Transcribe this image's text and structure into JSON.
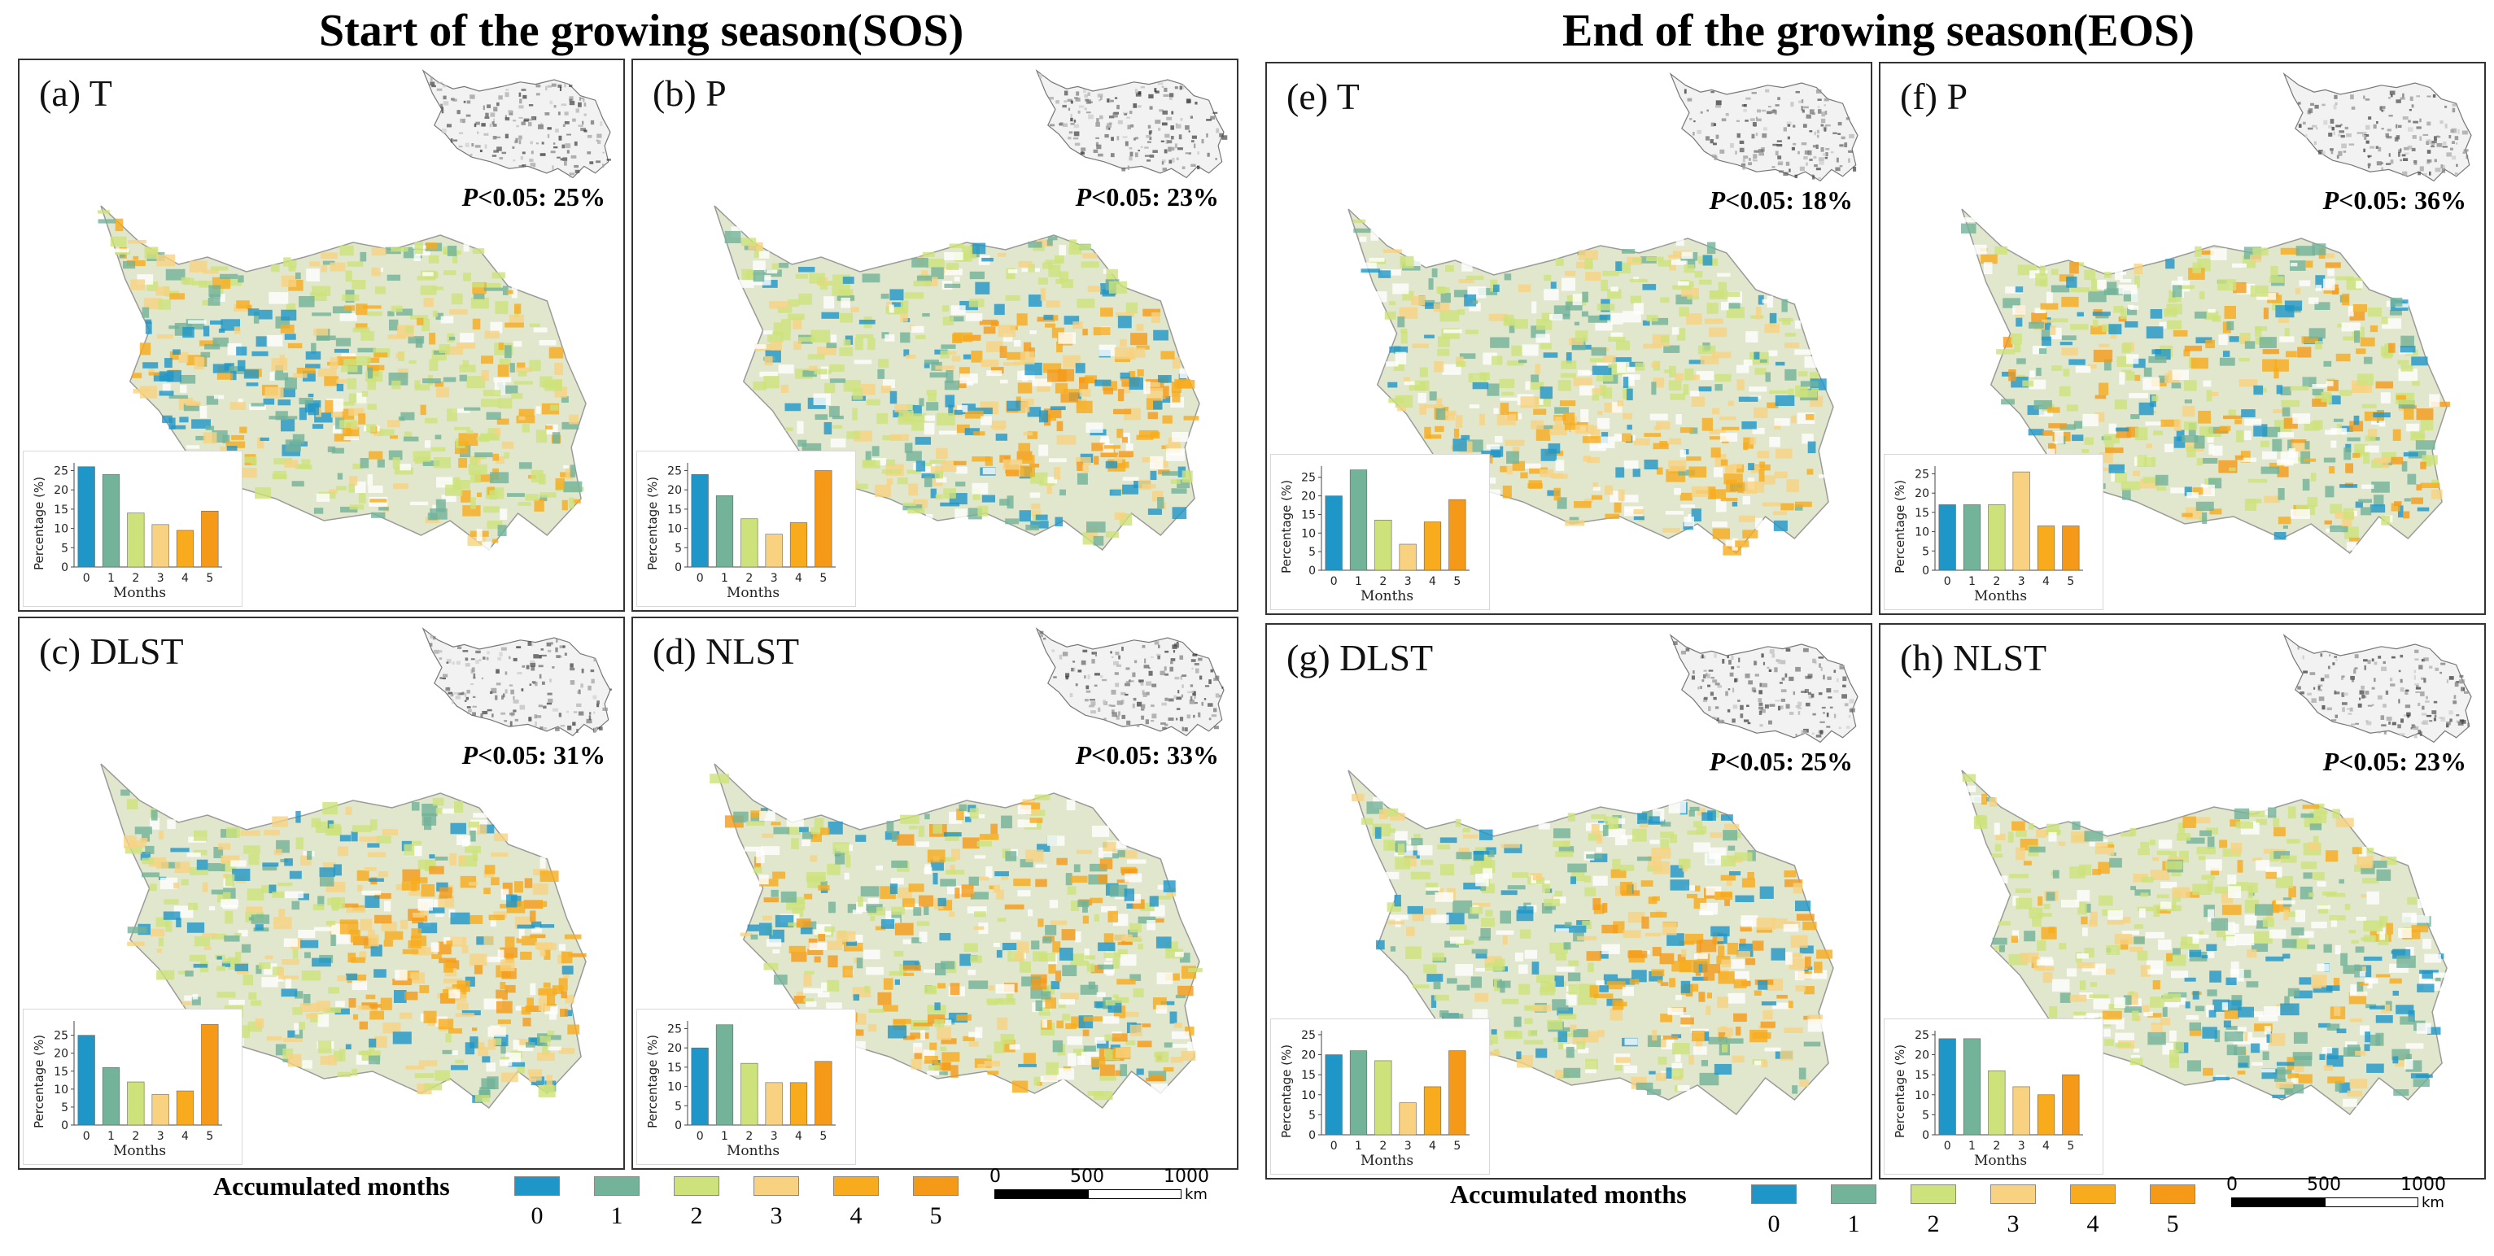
{
  "sections": {
    "sos_title": "Start of the growing season(SOS)",
    "eos_title": "End of the growing season(EOS)"
  },
  "colors": {
    "m0": "#1f96c8",
    "m1": "#72b39a",
    "m2": "#cde27a",
    "m3": "#f8d281",
    "m4": "#f8ab1c",
    "m5": "#f59a18",
    "map_base": "#c8d4a4"
  },
  "chart_data": [
    {
      "type": "bar",
      "panel": "(a) T",
      "sig_value": "<0.05: 25%",
      "categories": [
        "0",
        "1",
        "2",
        "3",
        "4",
        "5"
      ],
      "values": [
        26,
        24,
        14,
        11,
        9.5,
        14.5
      ],
      "xlabel": "Months",
      "ylabel": "Percentage (%)",
      "ylim": [
        0,
        27
      ],
      "yticks": [
        0,
        5,
        10,
        15,
        20,
        25
      ],
      "map_bias": "blue-west"
    },
    {
      "type": "bar",
      "panel": "(b) P",
      "sig_value": "<0.05: 23%",
      "categories": [
        "0",
        "1",
        "2",
        "3",
        "4",
        "5"
      ],
      "values": [
        24,
        18.5,
        12.5,
        8.5,
        11.5,
        25
      ],
      "xlabel": "Months",
      "ylabel": "Percentage (%)",
      "ylim": [
        0,
        27
      ],
      "yticks": [
        0,
        5,
        10,
        15,
        20,
        25
      ],
      "map_bias": "orange-east"
    },
    {
      "type": "bar",
      "panel": "(c) DLST",
      "sig_value": "<0.05: 31%",
      "categories": [
        "0",
        "1",
        "2",
        "3",
        "4",
        "5"
      ],
      "values": [
        25,
        16,
        12,
        8.5,
        9.5,
        28
      ],
      "xlabel": "Months",
      "ylabel": "Percentage (%)",
      "ylim": [
        0,
        29
      ],
      "yticks": [
        0,
        5,
        10,
        15,
        20,
        25
      ],
      "map_bias": "orange-east"
    },
    {
      "type": "bar",
      "panel": "(d) NLST",
      "sig_value": "<0.05: 33%",
      "categories": [
        "0",
        "1",
        "2",
        "3",
        "4",
        "5"
      ],
      "values": [
        20,
        26,
        16,
        11,
        11,
        16.5
      ],
      "xlabel": "Months",
      "ylabel": "Percentage (%)",
      "ylim": [
        0,
        27
      ],
      "yticks": [
        0,
        5,
        10,
        15,
        20,
        25
      ],
      "map_bias": "mixed"
    },
    {
      "type": "bar",
      "panel": "(e) T",
      "sig_value": "<0.05: 18%",
      "categories": [
        "0",
        "1",
        "2",
        "3",
        "4",
        "5"
      ],
      "values": [
        20,
        27,
        13.5,
        7,
        13,
        19
      ],
      "xlabel": "Months",
      "ylabel": "Percentage (%)",
      "ylim": [
        0,
        28
      ],
      "yticks": [
        0,
        5,
        10,
        15,
        20,
        25
      ],
      "map_bias": "orange-south"
    },
    {
      "type": "bar",
      "panel": "(f) P",
      "sig_value": "<0.05: 36%",
      "categories": [
        "0",
        "1",
        "2",
        "3",
        "4",
        "5"
      ],
      "values": [
        17,
        17,
        17,
        25.5,
        11.5,
        11.5
      ],
      "xlabel": "Months",
      "ylabel": "Percentage (%)",
      "ylim": [
        0,
        27
      ],
      "yticks": [
        0,
        5,
        10,
        15,
        20,
        25
      ],
      "map_bias": "mixed"
    },
    {
      "type": "bar",
      "panel": "(g) DLST",
      "sig_value": "<0.05: 25%",
      "categories": [
        "0",
        "1",
        "2",
        "3",
        "4",
        "5"
      ],
      "values": [
        20,
        21,
        18.5,
        8,
        12,
        21
      ],
      "xlabel": "Months",
      "ylabel": "Percentage (%)",
      "ylim": [
        0,
        26
      ],
      "yticks": [
        0,
        5,
        10,
        15,
        20,
        25
      ],
      "map_bias": "orange-east"
    },
    {
      "type": "bar",
      "panel": "(h) NLST",
      "sig_value": "<0.05: 23%",
      "categories": [
        "0",
        "1",
        "2",
        "3",
        "4",
        "5"
      ],
      "values": [
        24,
        24,
        16,
        12,
        10,
        15
      ],
      "xlabel": "Months",
      "ylabel": "Percentage (%)",
      "ylim": [
        0,
        26
      ],
      "yticks": [
        0,
        5,
        10,
        15,
        20,
        25
      ],
      "map_bias": "blue-south"
    }
  ],
  "sig_prefix": "P",
  "legend": {
    "title": "Accumulated months",
    "items": [
      "0",
      "1",
      "2",
      "3",
      "4",
      "5"
    ]
  },
  "scalebar": {
    "ticks": [
      "0",
      "500",
      "1000"
    ],
    "unit": "km"
  }
}
